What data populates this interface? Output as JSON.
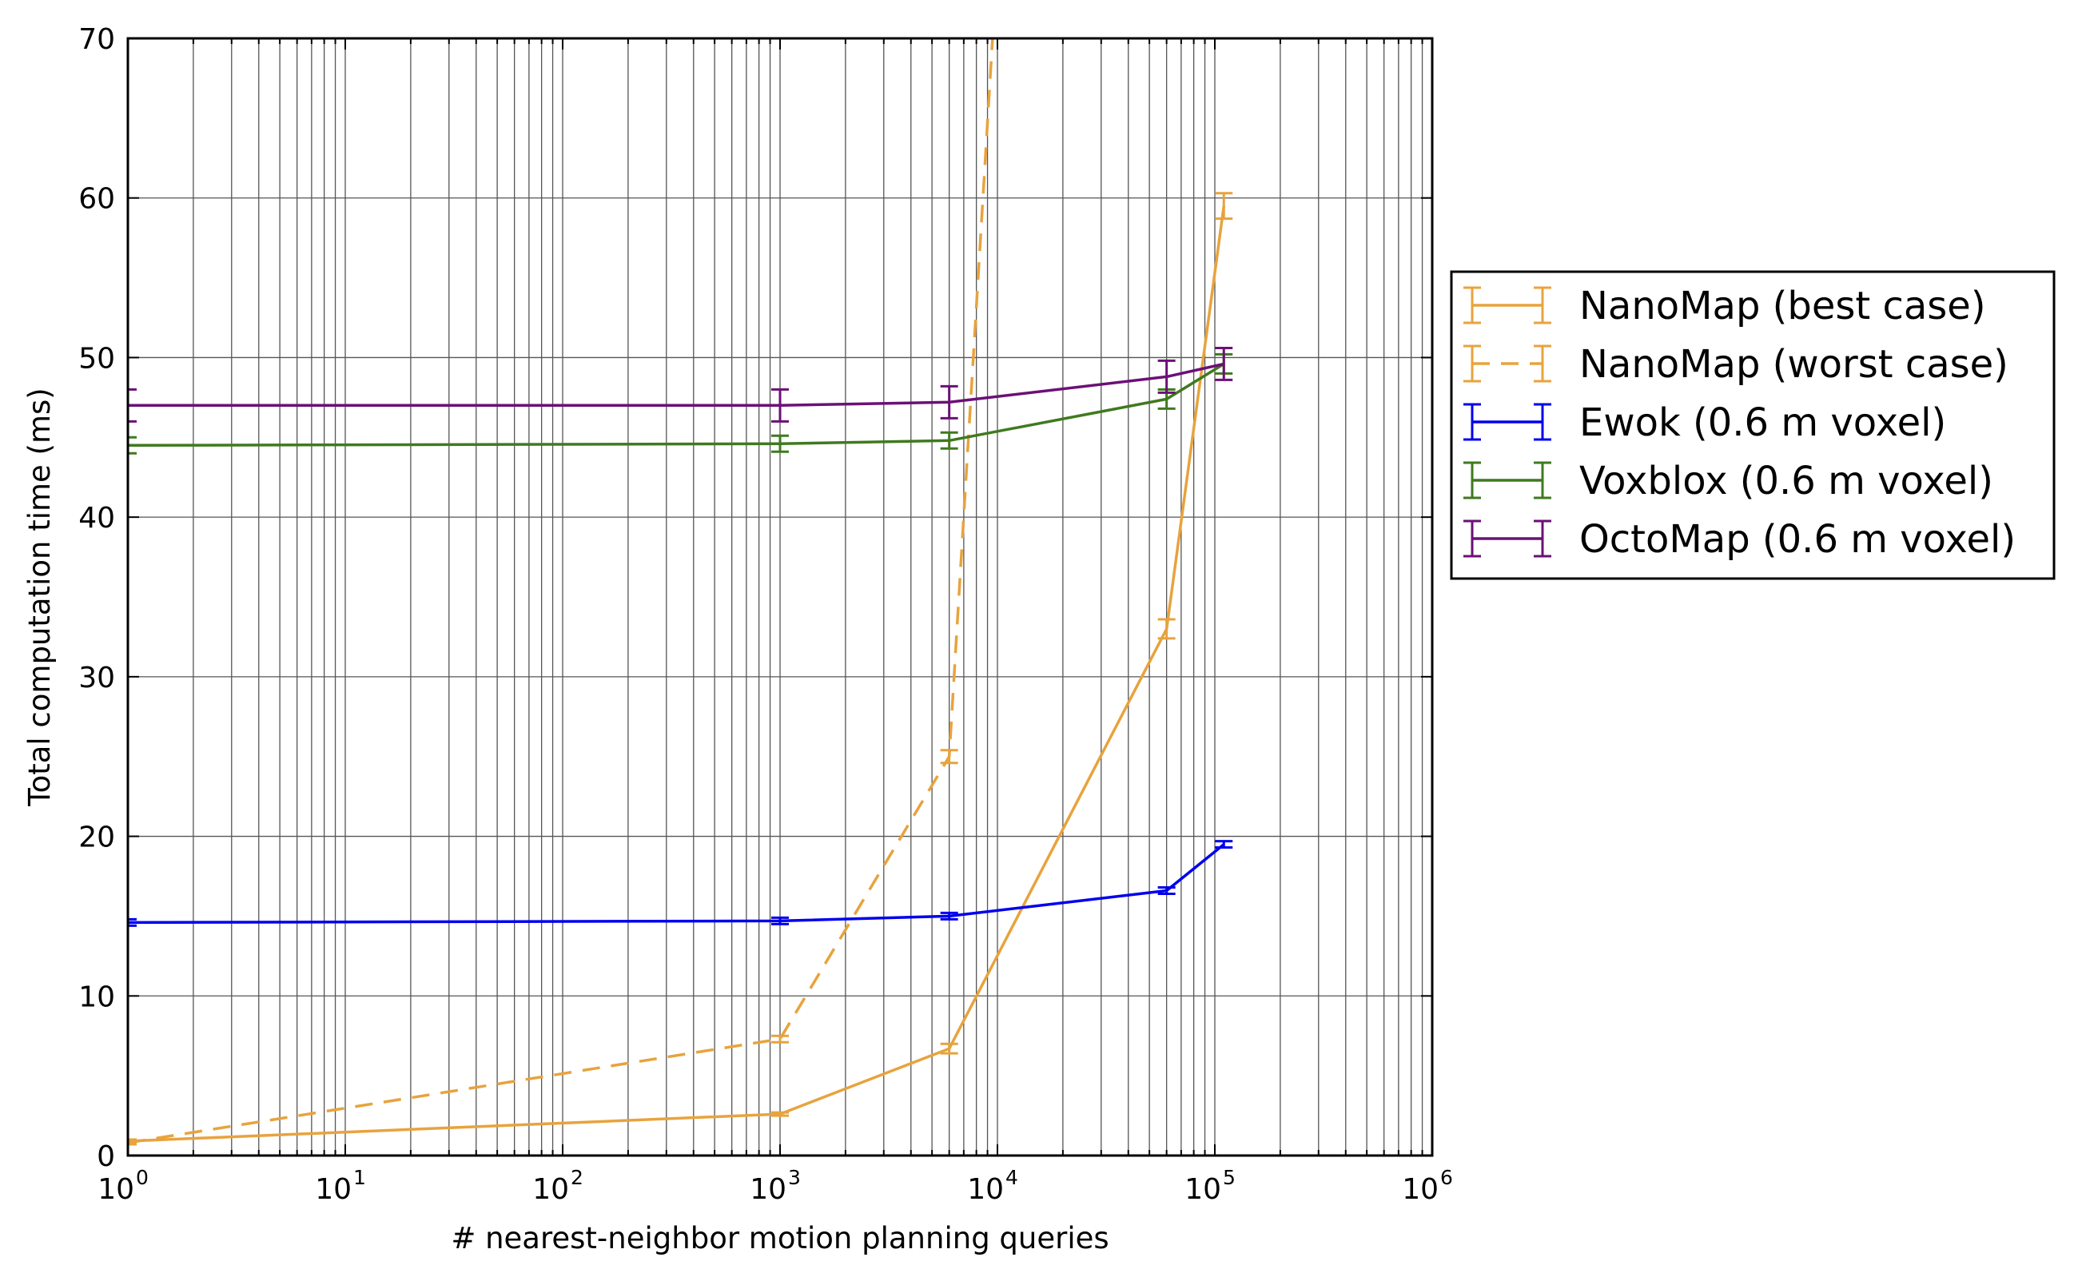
{
  "chart_data": {
    "type": "line",
    "xlabel": "# nearest-neighbor motion planning queries",
    "ylabel": "Total computation time (ms)",
    "xscale": "log",
    "xlim": [
      1,
      1000000
    ],
    "ylim": [
      0,
      70
    ],
    "x_ticks": [
      {
        "base": "10",
        "exp": "0"
      },
      {
        "base": "10",
        "exp": "1"
      },
      {
        "base": "10",
        "exp": "2"
      },
      {
        "base": "10",
        "exp": "3"
      },
      {
        "base": "10",
        "exp": "4"
      },
      {
        "base": "10",
        "exp": "5"
      },
      {
        "base": "10",
        "exp": "6"
      }
    ],
    "y_ticks": [
      "0",
      "10",
      "20",
      "30",
      "40",
      "50",
      "60",
      "70"
    ],
    "grid": true,
    "legend_position": "right, outside plot",
    "series": [
      {
        "name": "NanoMap (best case)",
        "color": "#E8A33D",
        "linestyle": "solid",
        "x": [
          1,
          1000,
          6000,
          60000,
          110000
        ],
        "y": [
          0.9,
          2.6,
          6.7,
          33.0,
          59.5
        ],
        "err": [
          0.1,
          0.1,
          0.3,
          0.6,
          0.8
        ]
      },
      {
        "name": "NanoMap (worst case)",
        "color": "#E8A33D",
        "linestyle": "dashed",
        "x": [
          1,
          1000,
          6000,
          9500
        ],
        "y": [
          0.8,
          7.3,
          25.0,
          70
        ],
        "err": [
          0.1,
          0.2,
          0.4,
          0
        ]
      },
      {
        "name": "Ewok (0.6 m voxel)",
        "color": "#0000EE",
        "linestyle": "solid",
        "x": [
          1,
          1000,
          6000,
          60000,
          110000
        ],
        "y": [
          14.6,
          14.7,
          15.0,
          16.6,
          19.5
        ],
        "err": [
          0.2,
          0.2,
          0.2,
          0.2,
          0.2
        ]
      },
      {
        "name": "Voxblox (0.6 m voxel)",
        "color": "#3F7A1E",
        "linestyle": "solid",
        "x": [
          1,
          1000,
          6000,
          60000,
          110000
        ],
        "y": [
          44.5,
          44.6,
          44.8,
          47.4,
          49.6
        ],
        "err": [
          0.5,
          0.5,
          0.5,
          0.6,
          0.6
        ]
      },
      {
        "name": "OctoMap (0.6 m voxel)",
        "color": "#6B1077",
        "linestyle": "solid",
        "x": [
          1,
          1000,
          6000,
          60000,
          110000
        ],
        "y": [
          47.0,
          47.0,
          47.2,
          48.8,
          49.6
        ],
        "err": [
          1.0,
          1.0,
          1.0,
          1.0,
          1.0
        ]
      }
    ]
  }
}
